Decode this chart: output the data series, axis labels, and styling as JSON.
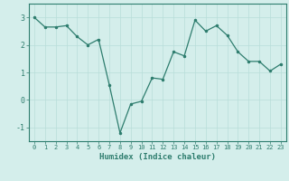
{
  "x": [
    0,
    1,
    2,
    3,
    4,
    5,
    6,
    7,
    8,
    9,
    10,
    11,
    12,
    13,
    14,
    15,
    16,
    17,
    18,
    19,
    20,
    21,
    22,
    23
  ],
  "y": [
    3.0,
    2.65,
    2.65,
    2.7,
    2.3,
    2.0,
    2.2,
    0.55,
    -1.2,
    -0.15,
    -0.05,
    0.8,
    0.75,
    1.75,
    1.6,
    2.9,
    2.5,
    2.7,
    2.35,
    1.75,
    1.4,
    1.4,
    1.05,
    1.3
  ],
  "line_color": "#2e7d6e",
  "marker": ".",
  "marker_size": 3,
  "xlabel": "Humidex (Indice chaleur)",
  "xlim": [
    -0.5,
    23.5
  ],
  "ylim": [
    -1.5,
    3.5
  ],
  "yticks": [
    -1,
    0,
    1,
    2,
    3
  ],
  "xticks": [
    0,
    1,
    2,
    3,
    4,
    5,
    6,
    7,
    8,
    9,
    10,
    11,
    12,
    13,
    14,
    15,
    16,
    17,
    18,
    19,
    20,
    21,
    22,
    23
  ],
  "background_color": "#d4eeeb",
  "grid_color": "#b8ddd9",
  "tick_color": "#2e7d6e",
  "label_color": "#2e7d6e",
  "xtick_fontsize": 5,
  "ytick_fontsize": 6,
  "xlabel_fontsize": 6.5
}
